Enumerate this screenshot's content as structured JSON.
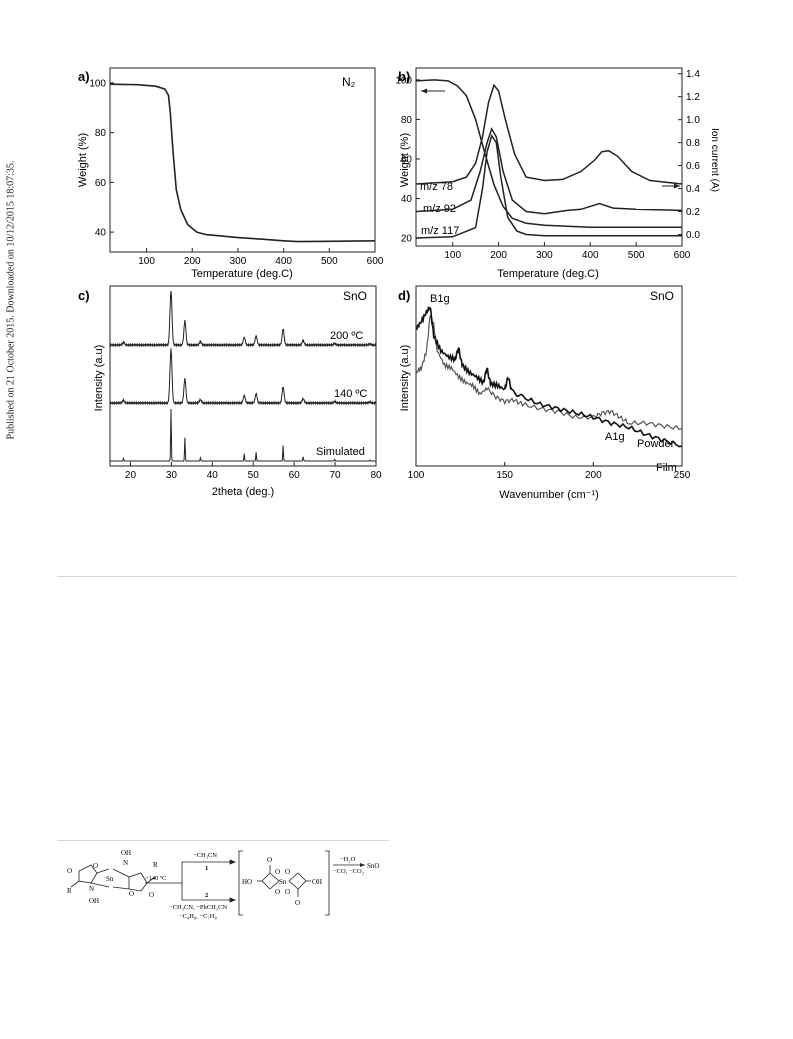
{
  "published_note": "Published on 21 October 2015. Downloaded on 10/12/2015 18:07:35.",
  "chart_data": [
    {
      "panel": "a)",
      "type": "line",
      "annotation": "N₂",
      "xlabel": "Temperature (deg.C)",
      "ylabel": "Weight (%)",
      "xlim": [
        20,
        600
      ],
      "ylim": [
        32,
        106
      ],
      "xticks": [
        100,
        200,
        300,
        400,
        500,
        600
      ],
      "yticks": [
        40,
        60,
        80,
        100
      ],
      "series": [
        {
          "x": [
            20,
            80,
            120,
            140,
            148,
            152,
            158,
            165,
            175,
            190,
            210,
            230,
            260,
            300,
            350,
            400,
            430,
            500,
            600
          ],
          "y": [
            99.5,
            99.3,
            98.7,
            97.5,
            95,
            88,
            72,
            57,
            49,
            43,
            40,
            39,
            38.5,
            37.8,
            37.2,
            36.5,
            36.2,
            36.3,
            36.5
          ]
        }
      ]
    },
    {
      "panel": "b)",
      "type": "line",
      "xlabel": "Temperature (deg.C)",
      "ylabel": "Weight (%)",
      "y2label": "Ion current (A)",
      "xlim": [
        20,
        600
      ],
      "ylim": [
        16,
        106
      ],
      "y2lim": [
        -0.1,
        1.45
      ],
      "xticks": [
        100,
        200,
        300,
        400,
        500,
        600
      ],
      "yticks": [
        20,
        40,
        60,
        80,
        100
      ],
      "y2ticks": [
        "0.0",
        "0.2",
        "0.4",
        "0.6",
        "0.8",
        "1.0",
        "1.2",
        "1.4"
      ],
      "series": [
        {
          "name": "weight",
          "axis": "left",
          "x": [
            20,
            60,
            90,
            110,
            130,
            150,
            170,
            190,
            210,
            230,
            260,
            300,
            350,
            400,
            450,
            500,
            600
          ],
          "y": [
            99.5,
            100,
            99.5,
            97,
            92,
            80,
            63,
            47,
            36,
            30,
            27.5,
            26.5,
            26,
            25.5,
            25.5,
            25.5,
            25.5
          ]
        },
        {
          "name": "m/z 78",
          "axis": "right",
          "x": [
            20,
            100,
            130,
            150,
            165,
            178,
            190,
            200,
            215,
            235,
            260,
            300,
            340,
            380,
            410,
            425,
            440,
            460,
            490,
            530,
            600
          ],
          "y": [
            0.44,
            0.46,
            0.5,
            0.62,
            0.85,
            1.15,
            1.3,
            1.25,
            1.0,
            0.7,
            0.5,
            0.47,
            0.48,
            0.55,
            0.65,
            0.72,
            0.73,
            0.68,
            0.55,
            0.47,
            0.44
          ]
        },
        {
          "name": "m/z 92",
          "axis": "right",
          "x": [
            20,
            100,
            140,
            160,
            175,
            185,
            195,
            210,
            230,
            260,
            300,
            350,
            380,
            420,
            450,
            500,
            600
          ],
          "y": [
            0.2,
            0.22,
            0.3,
            0.55,
            0.8,
            0.92,
            0.85,
            0.55,
            0.3,
            0.2,
            0.18,
            0.21,
            0.22,
            0.27,
            0.23,
            0.22,
            0.21
          ]
        },
        {
          "name": "m/z 117",
          "axis": "right",
          "x": [
            20,
            100,
            150,
            165,
            175,
            185,
            195,
            205,
            220,
            240,
            260,
            300,
            400,
            500,
            600
          ],
          "y": [
            -0.03,
            -0.02,
            0.06,
            0.4,
            0.72,
            0.86,
            0.8,
            0.5,
            0.15,
            0.03,
            0.0,
            -0.01,
            -0.01,
            -0.01,
            -0.01
          ]
        }
      ],
      "labels": [
        "m/z 78",
        "m/z 92",
        "m/z 117"
      ]
    },
    {
      "panel": "c)",
      "type": "line",
      "annotation": "SnO",
      "xlabel": "2theta (deg.)",
      "ylabel": "Intensity (a.u)",
      "xlim": [
        15,
        80
      ],
      "xticks": [
        20,
        30,
        40,
        50,
        60,
        70,
        80
      ],
      "traces": [
        "200 ºC",
        "140 ºC",
        "Simulated"
      ],
      "peaks": [
        [
          18.3,
          0.05
        ],
        [
          29.9,
          1.0
        ],
        [
          33.3,
          0.45
        ],
        [
          37.1,
          0.06
        ],
        [
          47.8,
          0.14
        ],
        [
          50.7,
          0.17
        ],
        [
          57.3,
          0.3
        ],
        [
          62.2,
          0.08
        ],
        [
          69.9,
          0.03
        ],
        [
          78.5,
          0.02
        ]
      ]
    },
    {
      "panel": "d)",
      "type": "line",
      "annotation": "SnO",
      "xlabel": "Wavenumber (cm⁻¹)",
      "ylabel": "Intensity (a.u)",
      "xlim": [
        100,
        250
      ],
      "xticks": [
        100,
        150,
        200,
        250
      ],
      "peak_labels": [
        "B1g",
        "A1g"
      ],
      "series": [
        {
          "name": "Powder",
          "x": [
            100,
            103,
            106,
            108,
            110,
            112,
            116,
            120,
            124,
            128,
            132,
            136,
            140,
            145,
            150,
            155,
            160,
            170,
            180,
            190,
            200,
            205,
            210,
            215,
            220,
            230,
            240,
            250
          ],
          "y": [
            0.55,
            0.58,
            0.7,
            0.95,
            0.88,
            0.7,
            0.6,
            0.58,
            0.52,
            0.48,
            0.46,
            0.4,
            0.44,
            0.38,
            0.35,
            0.36,
            0.33,
            0.3,
            0.28,
            0.24,
            0.24,
            0.27,
            0.28,
            0.24,
            0.2,
            0.2,
            0.18,
            0.16
          ]
        },
        {
          "name": "Film",
          "x": [
            100,
            103,
            106,
            108,
            110,
            114,
            118,
            122,
            124,
            126,
            130,
            134,
            138,
            140,
            142,
            146,
            150,
            152,
            154,
            160,
            170,
            180,
            190,
            200,
            210,
            220,
            230,
            240,
            250
          ],
          "y": [
            0.85,
            0.9,
            0.97,
            1.0,
            0.8,
            0.7,
            0.66,
            0.64,
            0.72,
            0.6,
            0.55,
            0.52,
            0.48,
            0.58,
            0.47,
            0.46,
            0.43,
            0.52,
            0.42,
            0.38,
            0.33,
            0.3,
            0.27,
            0.24,
            0.2,
            0.17,
            0.12,
            0.08,
            0.04
          ]
        }
      ]
    }
  ],
  "scheme": {
    "reactant_atoms": [
      "O",
      "O",
      "O",
      "O",
      "N",
      "N",
      "OH",
      "OH",
      "R",
      "R",
      "Sn"
    ],
    "condition": ">140 ºC",
    "path1": {
      "loss": "−CH₃CN",
      "num": "1"
    },
    "path2": {
      "num": "2",
      "loss_line1": "−CH₃CN, −PhCH₂CN",
      "loss_line2": "−C₄H₈, −C₇H₈"
    },
    "intermediate_atoms": [
      "HO",
      "OH",
      "Sn",
      "O",
      "O",
      "O",
      "O",
      "O",
      "O"
    ],
    "final_conditions": [
      "−H₂O",
      "−CO, −CO₂"
    ],
    "product": "SnO"
  }
}
